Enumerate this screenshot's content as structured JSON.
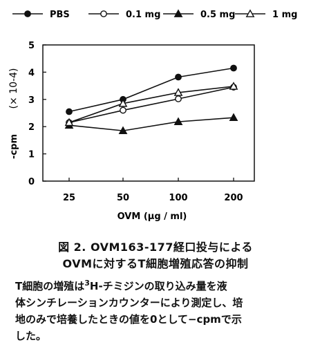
{
  "chart_data": {
    "type": "line",
    "x": [
      "25",
      "50",
      "100",
      "200"
    ],
    "ylabel": "-cpm",
    "yunit": "(× 10-4)",
    "xlabel": "OVM (μg / ml)",
    "ylim": [
      0,
      5
    ],
    "yticks": [
      "0",
      "1",
      "2",
      "3",
      "4",
      "5"
    ],
    "grid": false,
    "legend_position": "top",
    "series": [
      {
        "name": "PBS",
        "marker": "filled-circle",
        "values": [
          2.55,
          3.0,
          3.82,
          4.15
        ]
      },
      {
        "name": "0.1 mg",
        "marker": "open-circle",
        "values": [
          2.15,
          2.6,
          3.02,
          3.45
        ]
      },
      {
        "name": "0.5 mg",
        "marker": "filled-triangle",
        "values": [
          2.05,
          1.85,
          2.18,
          2.33
        ]
      },
      {
        "name": "1 mg",
        "marker": "open-triangle",
        "values": [
          2.15,
          2.85,
          3.25,
          3.48
        ]
      }
    ]
  },
  "caption": {
    "line1": "図 2. OVM163-177経口投与による",
    "line2": "OVMに対するT細胞増殖応答の抑制"
  },
  "body": {
    "line1_pre": "T細胞の増殖は",
    "line1_sup": "3",
    "line1_post": "H-チミジンの取り込み量を液",
    "line2": "体シンチレーションカウンターにより測定し、培",
    "line3": "地のみで培養したときの値を0として−cpmで示",
    "line4": "した。"
  }
}
